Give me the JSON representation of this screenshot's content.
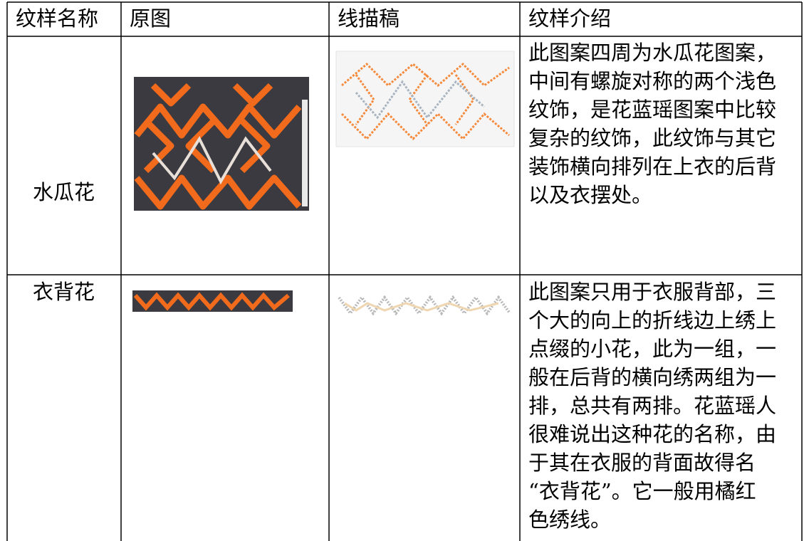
{
  "table": {
    "header": [
      "纹样名称",
      "原图",
      "线描稿",
      "纹样介绍"
    ],
    "rows": [
      {
        "name": "水瓜花",
        "description": [
          "此图案四周为水瓜花图案，",
          "中间有螺旋对称的两个浅色",
          "纹饰，是花蓝瑶图案中比较",
          "复杂的纹饰，此纹饰与其它",
          "装饰横向排列在上衣的后背",
          "以及衣摆处。"
        ]
      },
      {
        "name": "衣背花",
        "description": [
          "此图案只用于衣服背部，三",
          "个大的向上的折线边上绣上",
          "点缀的小花，此为一组，一",
          "般在后背的横向绣两组为一",
          "排，总共有两排。花蓝瑶人",
          "很难说出这种花的名称，由",
          "于其在衣服的背面故得名",
          "“衣背花”。它一般用橘红",
          "色绣线。"
        ]
      }
    ]
  }
}
